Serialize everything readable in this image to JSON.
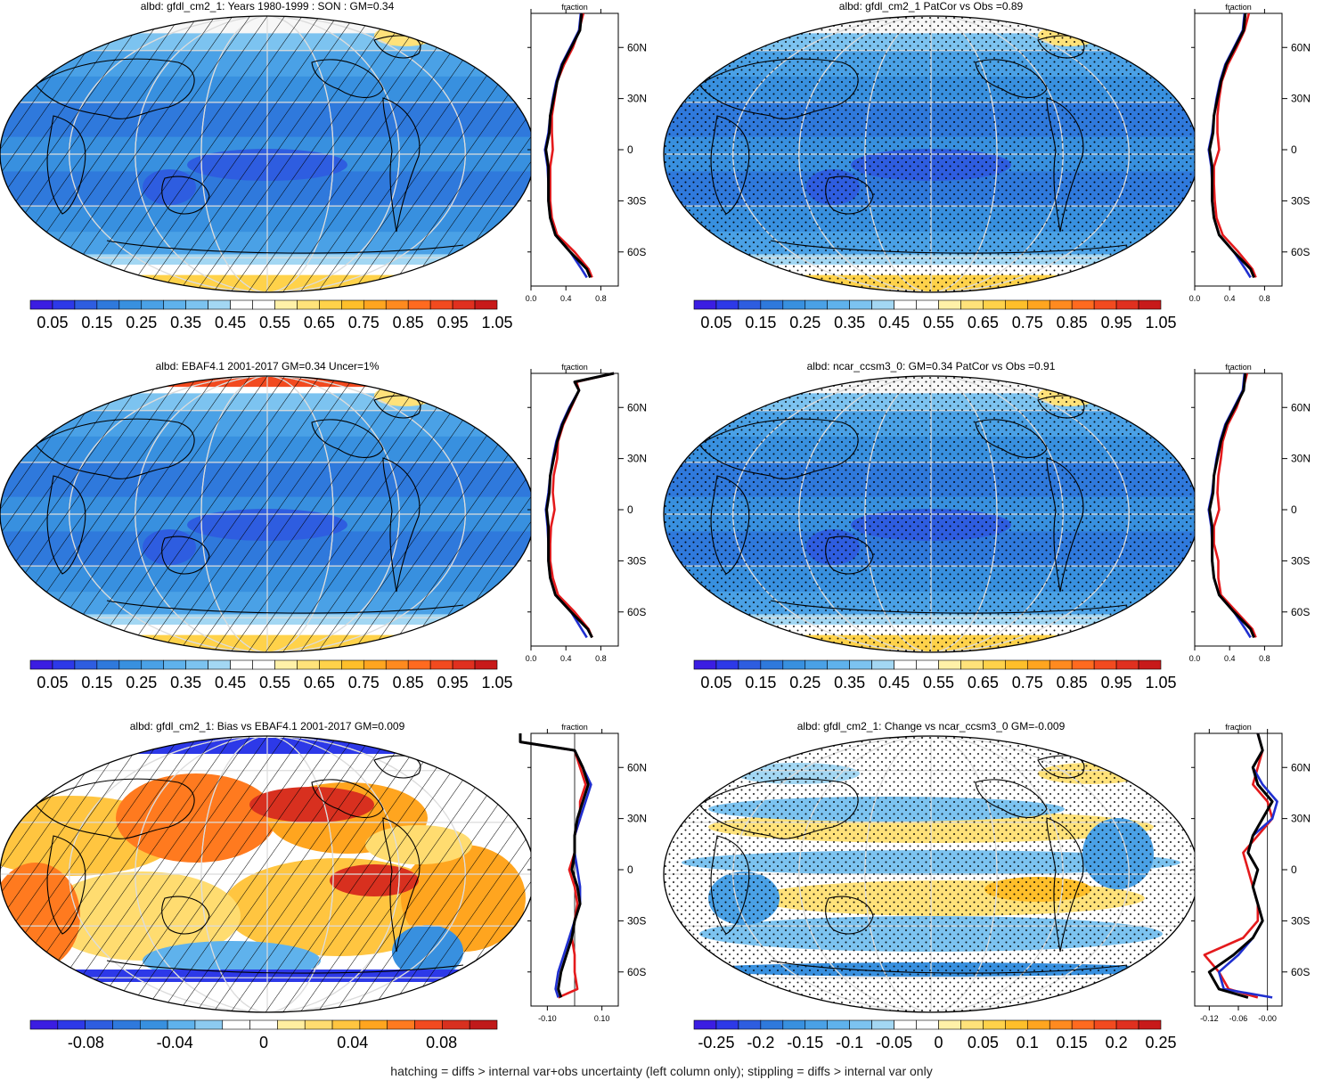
{
  "panels": [
    {
      "title": "albd: gfdl_cm2_1: Years 1980-1999 : SON : GM=0.34",
      "type": "abs",
      "hatch": true,
      "stipple": false,
      "colorbar": {
        "labels": [
          "0.05",
          "0.15",
          "0.25",
          "0.35",
          "0.45",
          "0.55",
          "0.65",
          "0.75",
          "0.85",
          "0.95",
          "1.05"
        ]
      },
      "zonal": {
        "title": "fraction",
        "xticks": [
          "0.0",
          "0.4",
          "0.8"
        ],
        "yticks": [
          "60N",
          "30N",
          "0",
          "30S",
          "60S"
        ]
      }
    },
    {
      "title": "albd: gfdl_cm2_1 PatCor vs Obs =0.89",
      "type": "abs",
      "hatch": false,
      "stipple": true,
      "colorbar": {
        "labels": [
          "0.05",
          "0.15",
          "0.25",
          "0.35",
          "0.45",
          "0.55",
          "0.65",
          "0.75",
          "0.85",
          "0.95",
          "1.05"
        ]
      },
      "zonal": {
        "title": "fraction",
        "xticks": [
          "0.0",
          "0.4",
          "0.8"
        ],
        "yticks": [
          "60N",
          "30N",
          "0",
          "30S",
          "60S"
        ]
      }
    },
    {
      "title": "albd: EBAF4.1 2001-2017 GM=0.34 Uncer=1%",
      "type": "abs",
      "hatch": true,
      "stipple": false,
      "colorbar": {
        "labels": [
          "0.05",
          "0.15",
          "0.25",
          "0.35",
          "0.45",
          "0.55",
          "0.65",
          "0.75",
          "0.85",
          "0.95",
          "1.05"
        ]
      },
      "zonal": {
        "title": "fraction",
        "xticks": [
          "0.0",
          "0.4",
          "0.8"
        ],
        "yticks": [
          "60N",
          "30N",
          "0",
          "30S",
          "60S"
        ]
      }
    },
    {
      "title": "albd: ncar_ccsm3_0: GM=0.34 PatCor vs Obs =0.91",
      "type": "abs",
      "hatch": false,
      "stipple": true,
      "colorbar": {
        "labels": [
          "0.05",
          "0.15",
          "0.25",
          "0.35",
          "0.45",
          "0.55",
          "0.65",
          "0.75",
          "0.85",
          "0.95",
          "1.05"
        ]
      },
      "zonal": {
        "title": "fraction",
        "xticks": [
          "0.0",
          "0.4",
          "0.8"
        ],
        "yticks": [
          "60N",
          "30N",
          "0",
          "30S",
          "60S"
        ]
      }
    },
    {
      "title": "albd: gfdl_cm2_1: Bias vs EBAF4.1 2001-2017  GM=0.009",
      "type": "bias",
      "hatch": true,
      "stipple": false,
      "colorbar": {
        "labels": [
          "-0.08",
          "-0.04",
          "0",
          "0.04",
          "0.08"
        ]
      },
      "zonal": {
        "title": "fraction",
        "xticks": [
          "-0.10",
          "0.10"
        ],
        "yticks": [
          "60N",
          "30N",
          "0",
          "30S",
          "60S"
        ]
      }
    },
    {
      "title": "albd: gfdl_cm2_1: Change vs ncar_ccsm3_0 GM=-0.009",
      "type": "change",
      "hatch": false,
      "stipple": true,
      "colorbar": {
        "labels": [
          "-0.25",
          "-0.2",
          "-0.15",
          "-0.1",
          "-0.05",
          "0",
          "0.05",
          "0.1",
          "0.15",
          "0.2",
          "0.25"
        ]
      },
      "zonal": {
        "title": "fraction",
        "xticks": [
          "-0.12",
          "-0.06",
          "-0.00"
        ],
        "yticks": [
          "60N",
          "30N",
          "0",
          "30S",
          "60S"
        ]
      }
    }
  ],
  "chart_data": [
    {
      "type": "heatmap",
      "title": "albd: gfdl_cm2_1: Years 1980-1999 : SON : GM=0.34",
      "colorbar_ticks": [
        0.05,
        0.15,
        0.25,
        0.35,
        0.45,
        0.55,
        0.65,
        0.75,
        0.85,
        0.95,
        1.05
      ],
      "zonal_mean": {
        "xlabel": "fraction",
        "xlim": [
          0,
          1.0
        ],
        "ylim": [
          -80,
          80
        ],
        "lat": [
          80,
          70,
          60,
          50,
          40,
          30,
          20,
          10,
          0,
          -10,
          -20,
          -30,
          -40,
          -50,
          -60,
          -70,
          -75
        ],
        "series": [
          {
            "color": "#000000",
            "values": [
              0.58,
              0.56,
              0.46,
              0.36,
              0.3,
              0.26,
              0.22,
              0.21,
              0.17,
              0.2,
              0.2,
              0.2,
              0.22,
              0.28,
              0.45,
              0.64,
              0.68
            ]
          },
          {
            "color": "#e41a1c",
            "values": [
              0.6,
              0.55,
              0.48,
              0.38,
              0.3,
              0.27,
              0.24,
              0.24,
              0.25,
              0.22,
              0.22,
              0.22,
              0.24,
              0.3,
              0.5,
              0.66,
              0.7
            ]
          },
          {
            "color": "#1f2fd0",
            "values": [
              0.57,
              0.55,
              0.45,
              0.35,
              0.29,
              0.25,
              0.22,
              0.2,
              0.16,
              0.19,
              0.2,
              0.2,
              0.22,
              0.28,
              0.45,
              0.58,
              0.64
            ]
          }
        ]
      }
    },
    {
      "type": "heatmap",
      "title": "albd: gfdl_cm2_1 PatCor vs Obs =0.89",
      "colorbar_ticks": [
        0.05,
        0.15,
        0.25,
        0.35,
        0.45,
        0.55,
        0.65,
        0.75,
        0.85,
        0.95,
        1.05
      ],
      "zonal_mean": {
        "xlabel": "fraction",
        "xlim": [
          0,
          1.0
        ],
        "ylim": [
          -80,
          80
        ],
        "lat": [
          80,
          70,
          60,
          50,
          40,
          30,
          20,
          10,
          0,
          -10,
          -20,
          -30,
          -40,
          -50,
          -60,
          -70,
          -75
        ],
        "series": [
          {
            "color": "#000000",
            "values": [
              0.58,
              0.56,
              0.46,
              0.36,
              0.3,
              0.26,
              0.22,
              0.21,
              0.17,
              0.2,
              0.2,
              0.2,
              0.22,
              0.28,
              0.45,
              0.64,
              0.68
            ]
          },
          {
            "color": "#e41a1c",
            "values": [
              0.62,
              0.57,
              0.48,
              0.38,
              0.31,
              0.28,
              0.26,
              0.26,
              0.28,
              0.22,
              0.22,
              0.23,
              0.25,
              0.32,
              0.5,
              0.66,
              0.7
            ]
          },
          {
            "color": "#1f2fd0",
            "values": [
              0.57,
              0.55,
              0.45,
              0.35,
              0.29,
              0.25,
              0.22,
              0.2,
              0.16,
              0.19,
              0.2,
              0.2,
              0.22,
              0.28,
              0.45,
              0.58,
              0.64
            ]
          }
        ]
      }
    },
    {
      "type": "heatmap",
      "title": "albd: EBAF4.1 2001-2017 GM=0.34 Uncer=1%",
      "colorbar_ticks": [
        0.05,
        0.15,
        0.25,
        0.35,
        0.45,
        0.55,
        0.65,
        0.75,
        0.85,
        0.95,
        1.05
      ],
      "zonal_mean": {
        "xlabel": "fraction",
        "xlim": [
          0,
          1.0
        ],
        "ylim": [
          -80,
          80
        ],
        "lat": [
          80,
          75,
          70,
          60,
          50,
          40,
          30,
          20,
          10,
          0,
          -10,
          -20,
          -30,
          -40,
          -50,
          -60,
          -70,
          -75
        ],
        "series": [
          {
            "color": "#000000",
            "values": [
              0.95,
              0.5,
              0.55,
              0.45,
              0.36,
              0.3,
              0.26,
              0.22,
              0.21,
              0.18,
              0.2,
              0.2,
              0.2,
              0.22,
              0.28,
              0.46,
              0.65,
              0.7
            ]
          },
          {
            "color": "#e41a1c",
            "values": [
              0.95,
              0.52,
              0.55,
              0.46,
              0.37,
              0.31,
              0.3,
              0.26,
              0.25,
              0.27,
              0.23,
              0.22,
              0.22,
              0.25,
              0.31,
              0.5,
              0.66,
              0.7
            ]
          },
          {
            "color": "#1f2fd0",
            "values": [
              0.95,
              0.5,
              0.55,
              0.44,
              0.35,
              0.29,
              0.25,
              0.22,
              0.2,
              0.17,
              0.19,
              0.2,
              0.2,
              0.22,
              0.28,
              0.46,
              0.58,
              0.64
            ]
          }
        ]
      }
    },
    {
      "type": "heatmap",
      "title": "albd: ncar_ccsm3_0: GM=0.34 PatCor vs Obs =0.91",
      "colorbar_ticks": [
        0.05,
        0.15,
        0.25,
        0.35,
        0.45,
        0.55,
        0.65,
        0.75,
        0.85,
        0.95,
        1.05
      ],
      "zonal_mean": {
        "xlabel": "fraction",
        "xlim": [
          0,
          1.0
        ],
        "ylim": [
          -80,
          80
        ],
        "lat": [
          80,
          70,
          60,
          50,
          40,
          30,
          20,
          10,
          0,
          -10,
          -20,
          -30,
          -40,
          -50,
          -60,
          -70,
          -75
        ],
        "series": [
          {
            "color": "#000000",
            "values": [
              0.58,
              0.56,
              0.46,
              0.36,
              0.3,
              0.26,
              0.22,
              0.21,
              0.17,
              0.2,
              0.2,
              0.2,
              0.22,
              0.28,
              0.45,
              0.64,
              0.68
            ]
          },
          {
            "color": "#e41a1c",
            "values": [
              0.6,
              0.55,
              0.48,
              0.38,
              0.32,
              0.3,
              0.27,
              0.26,
              0.28,
              0.22,
              0.22,
              0.27,
              0.27,
              0.3,
              0.48,
              0.66,
              0.7
            ]
          },
          {
            "color": "#1f2fd0",
            "values": [
              0.57,
              0.55,
              0.45,
              0.35,
              0.29,
              0.25,
              0.22,
              0.2,
              0.16,
              0.19,
              0.2,
              0.2,
              0.22,
              0.28,
              0.45,
              0.58,
              0.64
            ]
          }
        ]
      }
    },
    {
      "type": "heatmap",
      "title": "albd: gfdl_cm2_1: Bias vs EBAF4.1 2001-2017  GM=0.009",
      "colorbar_ticks": [
        -0.08,
        -0.04,
        0,
        0.04,
        0.08
      ],
      "zonal_mean": {
        "xlabel": "fraction",
        "xlim": [
          -0.16,
          0.16
        ],
        "ylim": [
          -80,
          80
        ],
        "lat": [
          80,
          75,
          70,
          60,
          50,
          40,
          30,
          20,
          10,
          0,
          -10,
          -20,
          -30,
          -40,
          -50,
          -60,
          -70,
          -75
        ],
        "series": [
          {
            "color": "#000000",
            "values": [
              -0.2,
              -0.2,
              0.0,
              0.03,
              0.05,
              0.03,
              0.01,
              0.0,
              0.0,
              -0.01,
              0.01,
              0.02,
              0.0,
              -0.01,
              -0.03,
              -0.05,
              -0.06,
              -0.05
            ]
          },
          {
            "color": "#e41a1c",
            "values": [
              -0.2,
              -0.2,
              0.0,
              0.02,
              0.04,
              0.02,
              0.02,
              0.0,
              0.0,
              -0.02,
              0.0,
              0.01,
              0.0,
              -0.01,
              0.0,
              0.0,
              0.01,
              -0.06
            ]
          },
          {
            "color": "#1f2fd0",
            "values": [
              -0.2,
              -0.2,
              0.0,
              0.03,
              0.06,
              0.04,
              0.02,
              0.0,
              0.0,
              0.01,
              0.02,
              0.02,
              0.0,
              -0.02,
              -0.04,
              -0.06,
              -0.07,
              -0.06
            ]
          }
        ]
      }
    },
    {
      "type": "heatmap",
      "title": "albd: gfdl_cm2_1: Change vs ncar_ccsm3_0 GM=-0.009",
      "colorbar_ticks": [
        -0.25,
        -0.2,
        -0.15,
        -0.1,
        -0.05,
        0,
        0.05,
        0.1,
        0.15,
        0.2,
        0.25
      ],
      "zonal_mean": {
        "xlabel": "fraction",
        "xlim": [
          -0.15,
          0.03
        ],
        "ylim": [
          -80,
          80
        ],
        "lat": [
          80,
          70,
          60,
          50,
          40,
          30,
          20,
          10,
          0,
          -10,
          -20,
          -30,
          -40,
          -50,
          -60,
          -70,
          -75
        ],
        "series": [
          {
            "color": "#000000",
            "values": [
              -0.02,
              -0.01,
              -0.03,
              -0.02,
              0.01,
              -0.01,
              -0.03,
              -0.04,
              -0.02,
              -0.03,
              -0.02,
              -0.01,
              -0.03,
              -0.07,
              -0.12,
              -0.1,
              -0.04
            ]
          },
          {
            "color": "#e41a1c",
            "values": [
              -0.02,
              -0.01,
              -0.02,
              -0.03,
              0.0,
              0.01,
              -0.02,
              -0.05,
              -0.04,
              -0.03,
              -0.02,
              -0.02,
              -0.05,
              -0.13,
              -0.1,
              -0.08,
              -0.02
            ]
          },
          {
            "color": "#1f2fd0",
            "values": [
              -0.02,
              -0.01,
              -0.03,
              -0.01,
              0.02,
              0.01,
              -0.03,
              -0.04,
              -0.02,
              -0.03,
              -0.02,
              -0.01,
              -0.03,
              -0.06,
              -0.1,
              -0.09,
              0.01
            ]
          }
        ]
      }
    }
  ],
  "footer": "hatching = diffs > internal var+obs uncertainty (left column only); stippling = diffs > internal var only",
  "palettes": {
    "abs": [
      "#3b1de2",
      "#2d39e8",
      "#2e5de0",
      "#2f79dc",
      "#3890df",
      "#4aa1e6",
      "#5fb2ec",
      "#7cc3f0",
      "#a3d7f3",
      "#ffffff",
      "#ffffff",
      "#fff1a8",
      "#ffe27a",
      "#ffd24a",
      "#ffbf2a",
      "#ffa51f",
      "#ff8a1f",
      "#ff6a1f",
      "#f24a1f",
      "#e0301f",
      "#c81a1a"
    ],
    "bias": [
      "#3b1de2",
      "#2d39e8",
      "#2e5de0",
      "#2f79dc",
      "#3890df",
      "#5fb2ec",
      "#8ccaf0",
      "#ffffff",
      "#ffffff",
      "#ffeea0",
      "#ffdc70",
      "#ffc540",
      "#ffa51f",
      "#ff7a1f",
      "#f24a1f",
      "#d8301f",
      "#c01a1a"
    ],
    "change": [
      "#3b1de2",
      "#2d39e8",
      "#2e5de0",
      "#2f79dc",
      "#3890df",
      "#4aa1e6",
      "#5fb2ec",
      "#7cc3f0",
      "#a3d7f3",
      "#ffffff",
      "#ffffff",
      "#fff1a8",
      "#ffe27a",
      "#ffd24a",
      "#ffbf2a",
      "#ffa51f",
      "#ff8a1f",
      "#ff6a1f",
      "#f24a1f",
      "#e0301f",
      "#c81a1a"
    ]
  }
}
